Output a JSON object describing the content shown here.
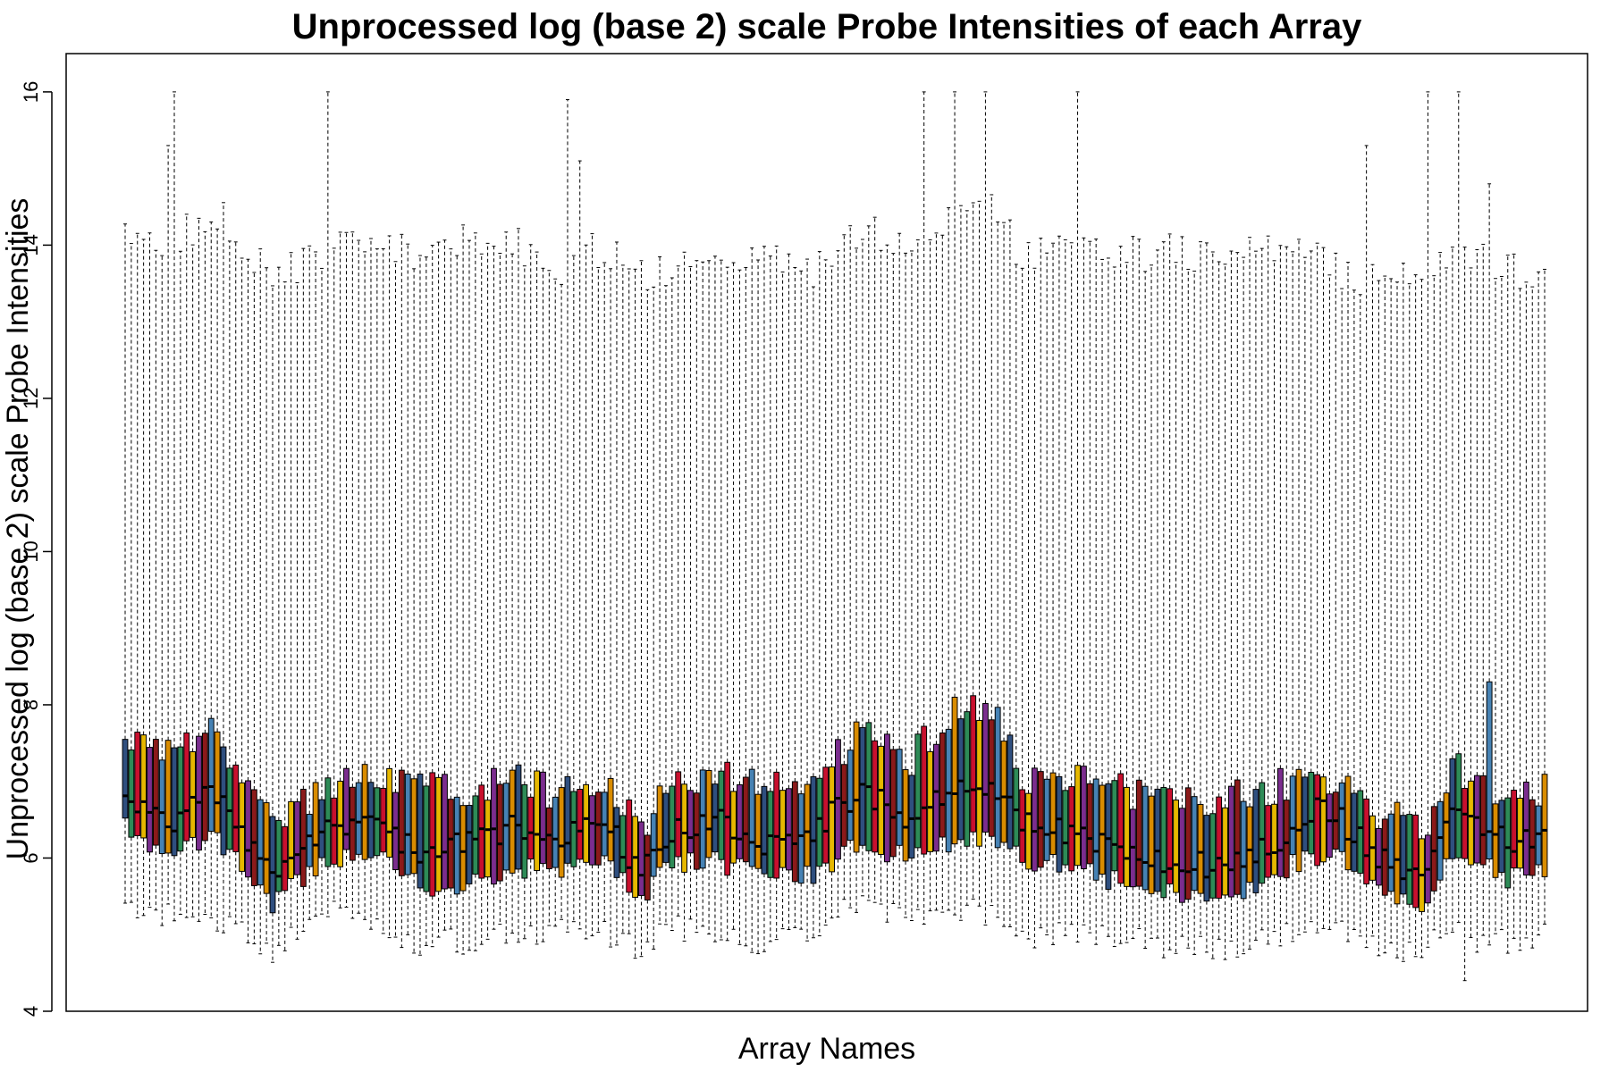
{
  "chart_data": {
    "type": "boxplot",
    "title": "Unprocessed log (base 2) scale Probe Intensities of each Array",
    "xlabel": "Array Names",
    "ylabel": "Unprocessed log (base 2) scale Probe Intensities",
    "ylim": [
      4,
      16.5
    ],
    "yticks": [
      4,
      6,
      8,
      10,
      12,
      14,
      16
    ],
    "grid": false,
    "n_arrays": 232,
    "palette": [
      "#2f4f7f",
      "#2e8b57",
      "#c8102e",
      "#e6b800",
      "#7b2d8e",
      "#8b1a1a",
      "#4682b4",
      "#d98c00"
    ],
    "anchors": {
      "index": [
        0,
        8,
        14,
        24,
        33,
        40,
        48,
        56,
        64,
        70,
        78,
        84,
        88,
        96,
        104,
        112,
        120,
        127,
        134,
        141,
        146,
        156,
        166,
        176,
        186,
        190,
        194,
        198,
        204,
        212,
        216,
        220,
        225,
        231
      ],
      "median": [
        6.8,
        6.5,
        6.9,
        5.8,
        6.4,
        6.5,
        6.1,
        6.2,
        6.4,
        6.3,
        6.5,
        5.8,
        6.3,
        6.5,
        6.2,
        6.4,
        6.9,
        6.5,
        6.9,
        6.9,
        6.5,
        6.3,
        6.0,
        5.9,
        6.1,
        6.4,
        6.6,
        6.5,
        6.0,
        5.8,
        6.6,
        6.5,
        6.2,
        6.3
      ],
      "q1": [
        6.4,
        6.0,
        6.3,
        5.4,
        6.0,
        6.1,
        5.6,
        5.7,
        5.9,
        5.8,
        6.0,
        5.4,
        5.9,
        6.0,
        5.7,
        5.8,
        6.2,
        6.0,
        6.2,
        6.2,
        6.0,
        5.8,
        5.6,
        5.5,
        5.6,
        5.9,
        6.0,
        6.0,
        5.6,
        5.4,
        6.0,
        6.0,
        5.7,
        5.9
      ],
      "q3": [
        7.5,
        7.3,
        7.8,
        6.4,
        6.9,
        7.1,
        6.9,
        6.9,
        7.1,
        6.8,
        7.0,
        6.3,
        6.9,
        7.1,
        6.9,
        7.0,
        7.7,
        7.2,
        7.9,
        8.0,
        7.0,
        7.0,
        6.8,
        6.7,
        6.9,
        7.0,
        7.1,
        7.0,
        6.6,
        6.4,
        7.2,
        7.0,
        6.8,
        6.9
      ],
      "lower": [
        5.4,
        5.2,
        5.2,
        4.8,
        5.3,
        5.1,
        4.9,
        4.9,
        5.0,
        5.1,
        5.0,
        4.8,
        5.1,
        5.0,
        4.8,
        5.1,
        5.4,
        5.2,
        5.3,
        5.3,
        5.0,
        5.0,
        4.9,
        4.8,
        4.9,
        5.0,
        5.1,
        5.1,
        4.8,
        4.8,
        5.2,
        4.9,
        4.9,
        5.0
      ],
      "upper": [
        14.2,
        14.0,
        14.5,
        13.6,
        13.9,
        14.0,
        13.9,
        14.1,
        14.0,
        13.6,
        14.0,
        13.6,
        13.7,
        13.9,
        13.9,
        13.7,
        14.2,
        14.0,
        14.4,
        14.6,
        13.8,
        14.0,
        13.9,
        13.9,
        13.9,
        13.9,
        13.8,
        13.6,
        13.5,
        13.6,
        14.0,
        13.9,
        13.7,
        13.5
      ]
    },
    "spikes": [
      {
        "index": 7,
        "upper": 15.3
      },
      {
        "index": 8,
        "upper": 16.0
      },
      {
        "index": 33,
        "upper": 16.0
      },
      {
        "index": 72,
        "upper": 15.9
      },
      {
        "index": 74,
        "upper": 15.1
      },
      {
        "index": 130,
        "upper": 16.0
      },
      {
        "index": 135,
        "upper": 16.0
      },
      {
        "index": 140,
        "upper": 16.0
      },
      {
        "index": 155,
        "upper": 16.0
      },
      {
        "index": 202,
        "upper": 15.3
      },
      {
        "index": 212,
        "upper": 16.0
      },
      {
        "index": 217,
        "upper": 16.0
      },
      {
        "index": 218,
        "lower": 4.4
      },
      {
        "index": 222,
        "upper": 14.8
      },
      {
        "index": 222,
        "q3": 8.3
      }
    ]
  }
}
